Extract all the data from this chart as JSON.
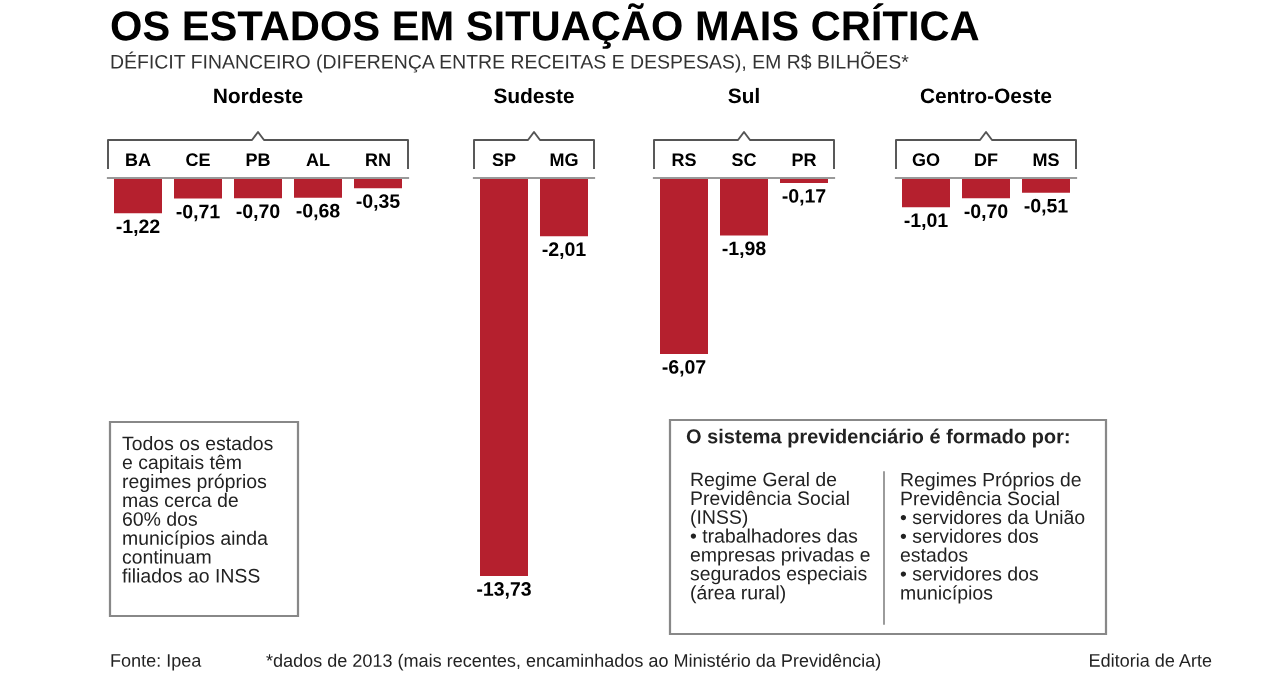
{
  "chart_data": [
    {
      "type": "other",
      "title": "OS ESTADOS EM SITUAÇÃO MAIS CRÍTICA",
      "subtitle": "DÉFICIT FINANCEIRO (DIFERENÇA ENTRE RECEITAS E DESPESAS), EM R$ BILHÕES*",
      "annotations": [
        "Todos os estados\ne capitais têm\nregimes próprios\nmas cerca de\n60% dos\nmunicípios ainda\ncontinuam\nfiliados ao INSS",
        "O sistema previdenciário é formado por:",
        "Regime Geral de\nPrevidência Social\n(INSS)\n• trabalhadores das\nempresas privadas e\nsegurados especiais\n(área rural)",
        "Regimes Próprios de\nPrevidência Social\n• servidores da União\n• servidores dos\nestados\n• servidores dos\nmunicípios",
        "Fonte: Ipea",
        "*dados de 2013 (mais recentes, encaminhados ao Ministério da Previdência)",
        "Editoria de Arte"
      ]
    },
    {
      "type": "bar",
      "title": "Nordeste",
      "categories": [
        "BA",
        "CE",
        "PB",
        "AL",
        "RN"
      ],
      "color": "#b5202e",
      "values": [
        -1.22,
        -0.71,
        -0.7,
        -0.68,
        -0.35
      ],
      "value_labels": [
        "-1,22",
        "-0,71",
        "-0,70",
        "-0,68",
        "-0,35"
      ]
    },
    {
      "type": "bar",
      "title": "Sudeste",
      "categories": [
        "SP",
        "MG"
      ],
      "color": "#b5202e",
      "values": [
        -13.73,
        -2.01
      ],
      "value_labels": [
        "-13,73",
        "-2,01"
      ]
    },
    {
      "type": "bar",
      "title": "Sul",
      "categories": [
        "RS",
        "SC",
        "PR"
      ],
      "color": "#b5202e",
      "values": [
        -6.07,
        -1.98,
        -0.17
      ],
      "value_labels": [
        "-6,07",
        "-1,98",
        "-0,17"
      ]
    },
    {
      "type": "bar",
      "title": "Centro-Oeste",
      "categories": [
        "GO",
        "DF",
        "MS"
      ],
      "color": "#b5202e",
      "values": [
        -1.01,
        -0.7,
        -0.51
      ],
      "value_labels": [
        "-1,01",
        "-0,70",
        "-0,51"
      ]
    }
  ]
}
